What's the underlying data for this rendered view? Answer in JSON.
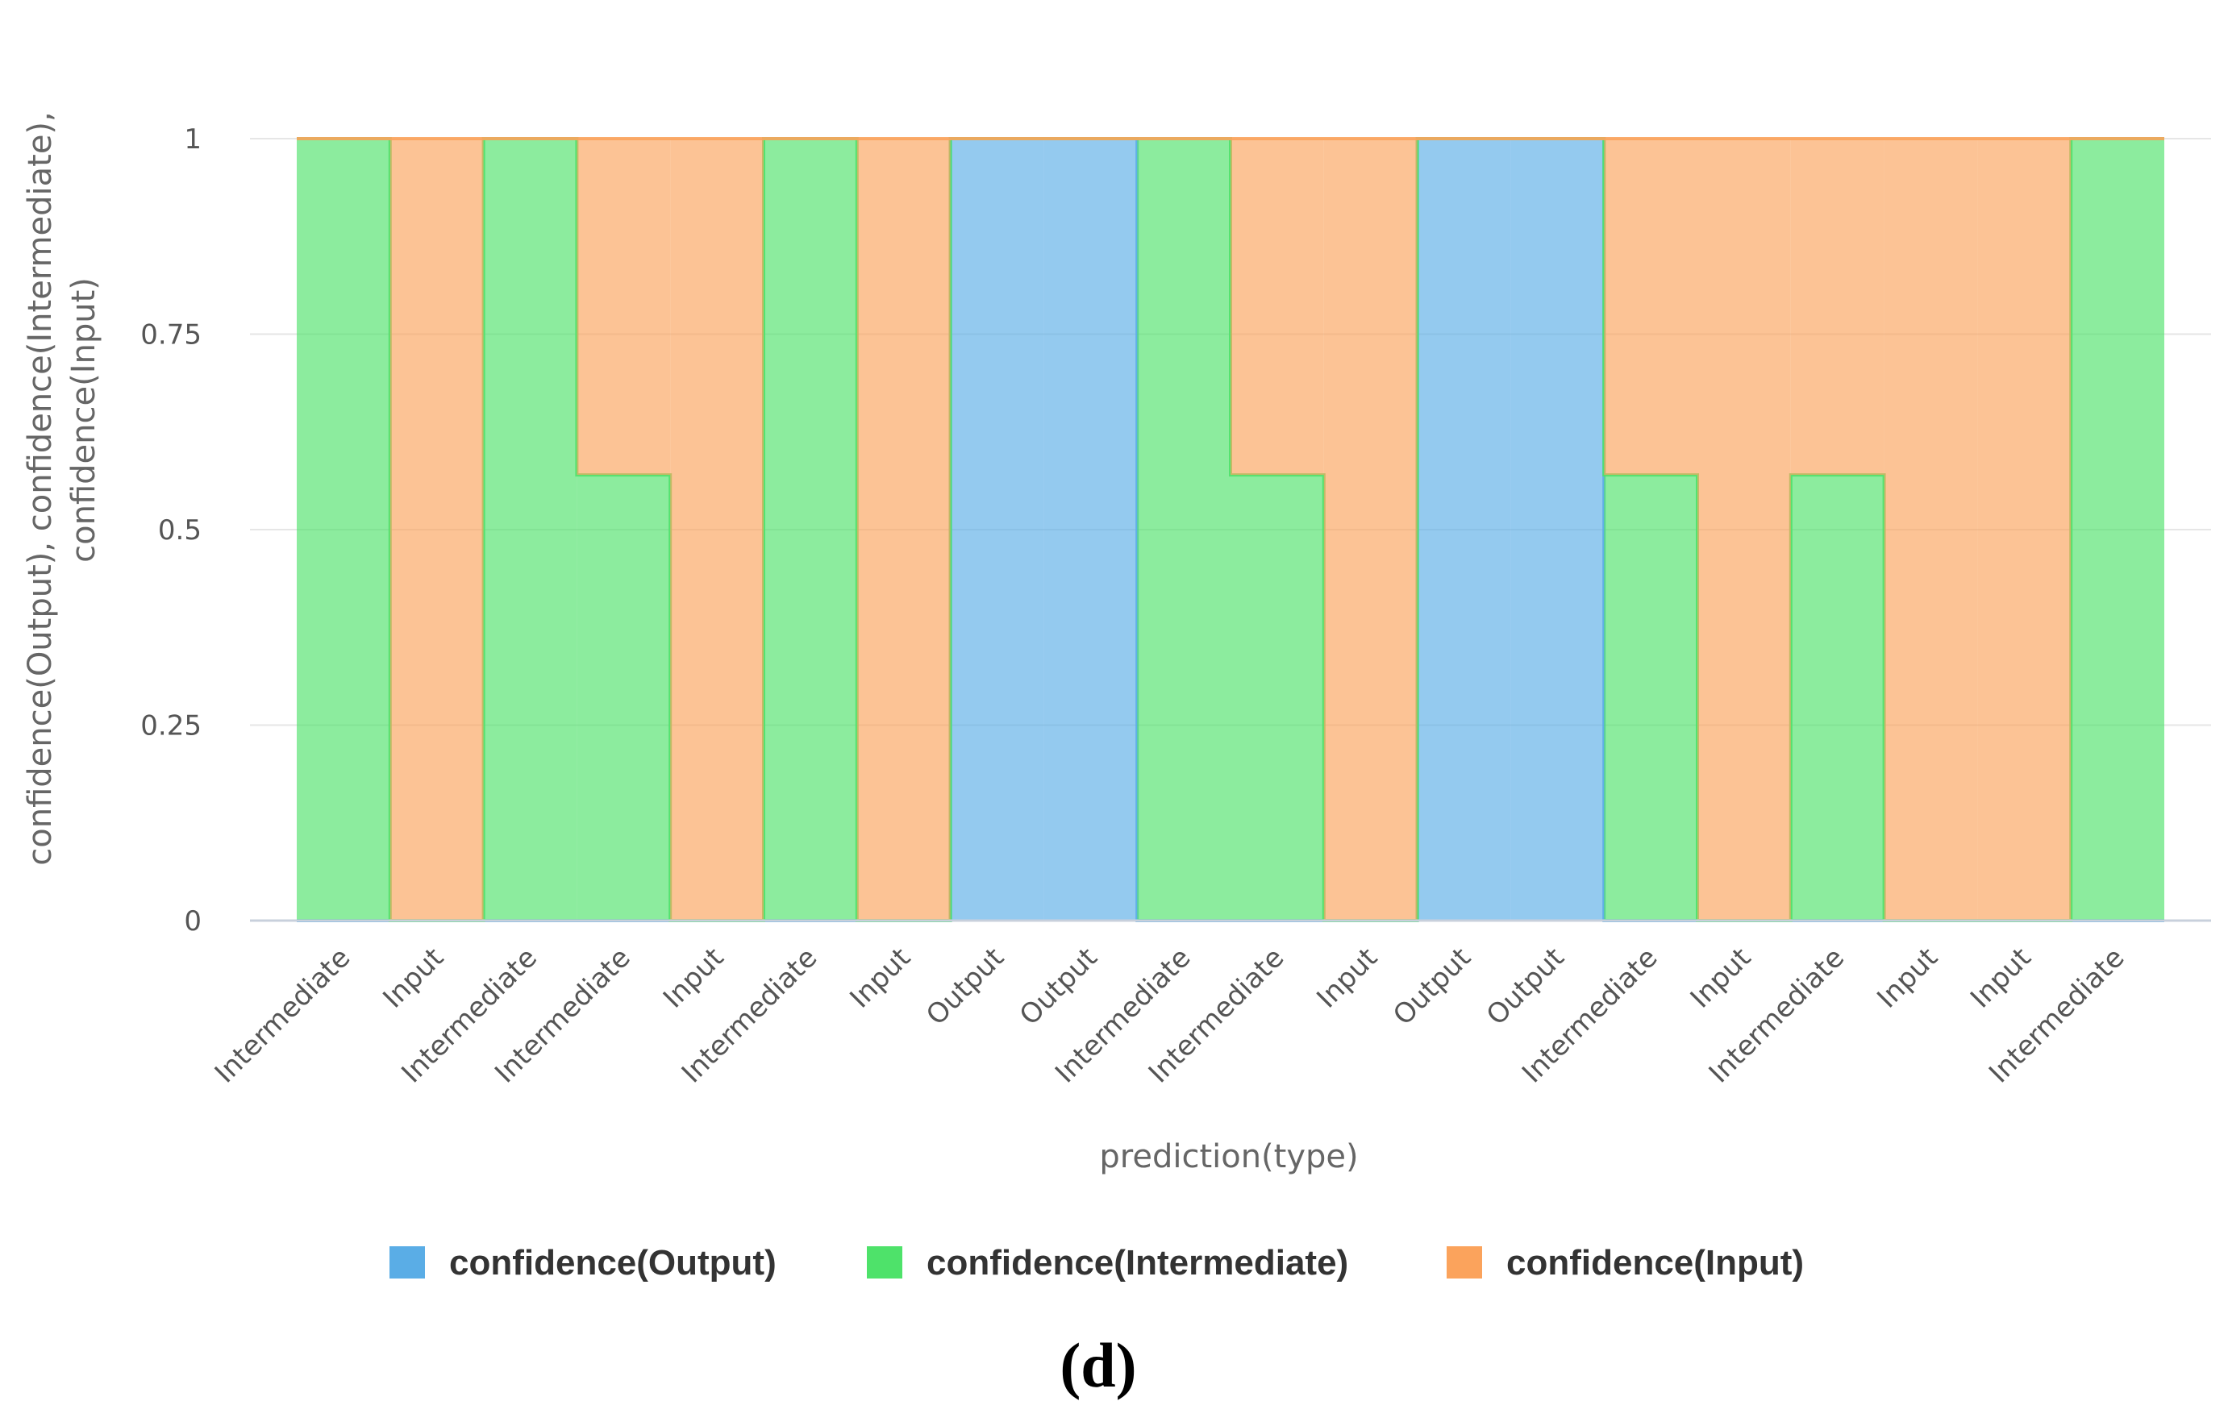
{
  "chart_data": {
    "type": "area",
    "step": true,
    "xlabel": "prediction(type)",
    "ylabel_lines": [
      "confidence(Output), confidence(Intermediate),",
      "confidence(Input)"
    ],
    "categories": [
      "Intermediate",
      "Input",
      "Intermediate",
      "Intermediate",
      "Input",
      "Intermediate",
      "Input",
      "Output",
      "Output",
      "Intermediate",
      "Intermediate",
      "Input",
      "Output",
      "Output",
      "Intermediate",
      "Input",
      "Intermediate",
      "Input",
      "Input",
      "Intermediate"
    ],
    "yticks": [
      "0",
      "0.25",
      "0.5",
      "0.75",
      "1"
    ],
    "ylim": [
      0,
      1
    ],
    "grid": true,
    "legend_position": "bottom-center",
    "series": [
      {
        "name": "confidence(Output)",
        "color": "#5aade6",
        "values": [
          0,
          0,
          0,
          0,
          0,
          0,
          0,
          1,
          1,
          0,
          0,
          0,
          1,
          1,
          0,
          0,
          0,
          0,
          0,
          0
        ]
      },
      {
        "name": "confidence(Intermediate)",
        "color": "#4ee26a",
        "values": [
          1,
          0,
          1,
          0.57,
          0,
          1,
          0,
          0,
          0,
          1,
          0.57,
          0,
          0,
          0,
          0.57,
          0,
          0.57,
          0,
          0,
          1
        ]
      },
      {
        "name": "confidence(Input)",
        "color": "#fba35c",
        "values": [
          0,
          1,
          0,
          0.43,
          1,
          0,
          1,
          0,
          0,
          0,
          0.43,
          1,
          0,
          0,
          0.43,
          1,
          0.43,
          1,
          1,
          0
        ]
      }
    ]
  },
  "caption": "(d)"
}
